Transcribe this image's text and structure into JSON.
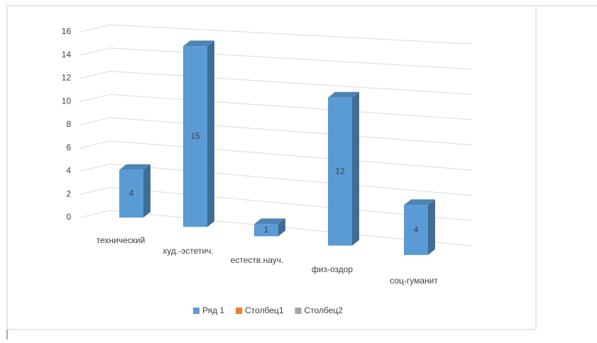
{
  "chart_data": {
    "type": "bar3d",
    "categories": [
      "технический",
      "худ.-эстетич.",
      "естеств.науч.",
      "физ-оздор",
      "соц-гуманит"
    ],
    "series": [
      {
        "name": "Ряд 1",
        "color": "#5b9bd5",
        "values": [
          4,
          15,
          1,
          12,
          4
        ]
      },
      {
        "name": "Столбец1",
        "color": "#ed7d31",
        "values": [
          null,
          null,
          null,
          null,
          null
        ]
      },
      {
        "name": "Столбец2",
        "color": "#a5a5a5",
        "values": [
          null,
          null,
          null,
          null,
          null
        ]
      }
    ],
    "ylim": [
      0,
      16
    ],
    "yticks": [
      0,
      2,
      4,
      6,
      8,
      10,
      12,
      14,
      16
    ],
    "grid": true,
    "legend": "bottom"
  }
}
